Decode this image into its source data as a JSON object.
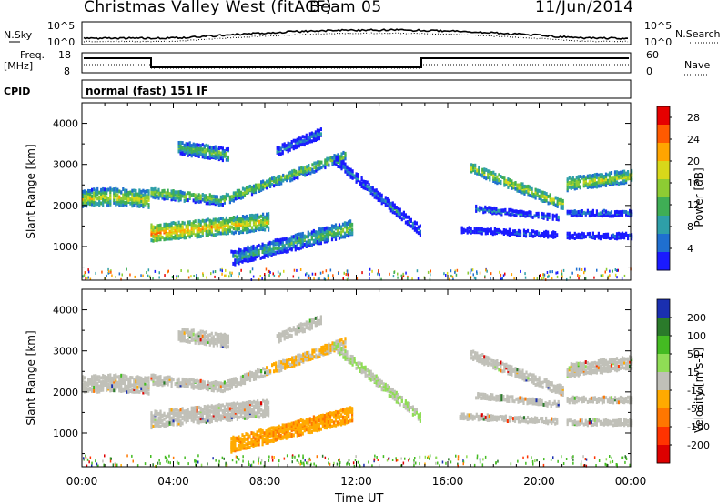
{
  "header": {
    "station_title": "Christmas Valley West (fitACF)",
    "beam": "Beam 05",
    "date": "11/Jun/2014"
  },
  "params": {
    "nsky_label": "N.Sky",
    "nsearch_label": "N.Search",
    "freq_label": "Freq.",
    "freq_unit": "[MHz]",
    "nave_label": "Nave",
    "cpid_label": "CPID",
    "cpid_value": "normal (fast) 151 IF",
    "noise_ticks": [
      "10^5",
      "10^0"
    ],
    "freq_ticks": [
      "18",
      "8"
    ],
    "nave_ticks": [
      "60",
      "0"
    ]
  },
  "chart_data": [
    {
      "type": "heatmap",
      "title": "Power",
      "xlabel": "Time UT",
      "ylabel": "Slant Range [km]",
      "x_tick_labels": [
        "00:00",
        "04:00",
        "08:00",
        "12:00",
        "16:00",
        "20:00",
        "00:00"
      ],
      "xlim_hours": [
        0,
        24
      ],
      "ylim_km": [
        180,
        4500
      ],
      "y_tick_values": [
        1000,
        2000,
        3000,
        4000
      ],
      "colorbar": {
        "label": "Power [dB]",
        "ticks": [
          4,
          8,
          12,
          16,
          20,
          24,
          28
        ],
        "range": [
          0,
          30
        ],
        "colors": [
          "#1a1aff",
          "#1f6fd0",
          "#2e9fa8",
          "#3fae55",
          "#8dcc33",
          "#d8d81a",
          "#ffa500",
          "#ff5a00",
          "#e60000"
        ]
      }
    },
    {
      "type": "heatmap",
      "title": "Velocity",
      "xlabel": "Time UT",
      "ylabel": "Slant Range [km]",
      "x_tick_labels": [
        "00:00",
        "04:00",
        "08:00",
        "12:00",
        "16:00",
        "20:00",
        "00:00"
      ],
      "xlim_hours": [
        0,
        24
      ],
      "ylim_km": [
        180,
        4500
      ],
      "y_tick_values": [
        1000,
        2000,
        3000,
        4000
      ],
      "colorbar": {
        "label": "Velocity [m s-1]",
        "ticks": [
          200,
          100,
          50,
          15,
          -15,
          -50,
          -100,
          -200
        ],
        "colors": [
          "#1a2fb0",
          "#2a7a2a",
          "#44bb22",
          "#8fdd55",
          "#c0c0b8",
          "#ffaa00",
          "#ff7700",
          "#ff3300",
          "#dd0000"
        ]
      }
    }
  ]
}
